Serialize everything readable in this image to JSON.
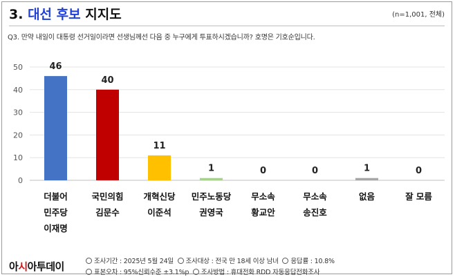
{
  "header": {
    "number": "3.",
    "title_highlight": "대선 후보",
    "title_rest": "지지도",
    "sample": "(n=1,001, 전체)"
  },
  "question": "Q3. 만약 내일이 대통령 선거일이라면 선생님께선 다음 중 누구에게 투표하시겠습니까? 호명은 기호순입니다.",
  "chart_data": {
    "type": "bar",
    "categories": [
      [
        "더불어",
        "민주당",
        "이재명"
      ],
      [
        "국민의힘",
        "김문수"
      ],
      [
        "개혁신당",
        "이준석"
      ],
      [
        "민주노동당",
        "권영국"
      ],
      [
        "무소속",
        "황교안"
      ],
      [
        "무소속",
        "송진호"
      ],
      [
        "없음"
      ],
      [
        "잘 모름"
      ]
    ],
    "values": [
      46,
      40,
      11,
      1,
      0,
      0,
      1,
      0
    ],
    "value_labels": [
      "46",
      "40",
      "11",
      "1",
      "0",
      "0",
      "1",
      "0"
    ],
    "colors": [
      "#4472c4",
      "#c00000",
      "#ffc000",
      "#a9d18e",
      "#a6a6a6",
      "#a6a6a6",
      "#a6a6a6",
      "#a6a6a6"
    ],
    "ylim": [
      0,
      50
    ],
    "yticks": [
      "0",
      "10",
      "20",
      "30",
      "40",
      "50"
    ],
    "grid": true
  },
  "footer": {
    "logo_part1": "아",
    "logo_red": "시",
    "logo_part2": "아투데이",
    "line1": [
      "조사기간 : 2025년 5월 24일",
      "조사대상 : 전국 만 18세 이상 남녀",
      "응답률 : 10.8%"
    ],
    "line2": [
      "표본오차 : 95%신뢰수준 ±3.1%p",
      "조사방법 : 휴대전화 RDD 자동응답전화조사"
    ]
  }
}
